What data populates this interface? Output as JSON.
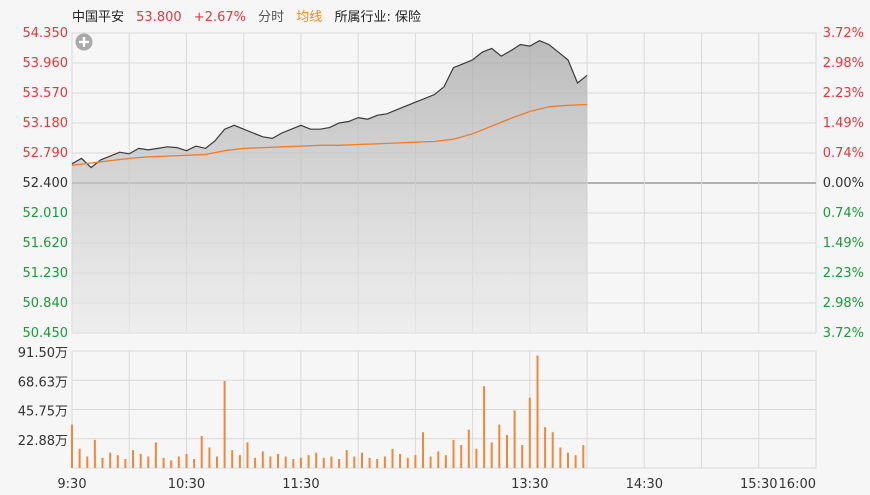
{
  "header": {
    "stock_name": "中国平安",
    "price": "53.800",
    "change_pct": "+2.67%",
    "period_label": "分时",
    "avg_label": "均线",
    "industry": "所属行业: 保险"
  },
  "icons": {
    "add": "plus-circle-icon"
  },
  "colors": {
    "price_line": "#3a3a3a",
    "avg_line": "#f07d2a",
    "up": "#e0393e",
    "down": "#1a9a3a",
    "volume": "#f0883a",
    "grid": "#d9d9d9"
  },
  "chart_data": [
    {
      "type": "line",
      "title": "",
      "prev_close": 52.4,
      "ylim": [
        50.45,
        54.35
      ],
      "y_ticks_left": [
        "54.350",
        "53.960",
        "53.570",
        "53.180",
        "52.790",
        "52.400",
        "52.010",
        "51.620",
        "51.230",
        "50.840",
        "50.450"
      ],
      "y_ticks_right": [
        "3.72%",
        "2.98%",
        "2.23%",
        "1.49%",
        "0.74%",
        "0.00%",
        "0.74%",
        "1.49%",
        "2.23%",
        "2.98%",
        "3.72%"
      ],
      "x_ticks": [
        "9:30",
        "10:30",
        "11:30",
        "13:30",
        "14:30",
        "15:30",
        "16:00"
      ],
      "grid": true,
      "series": [
        {
          "x_minutes": [
            0,
            5,
            10,
            15,
            20,
            25,
            30,
            35,
            40,
            45,
            50,
            55,
            60,
            65,
            70,
            75,
            80,
            85,
            90,
            95,
            100,
            105,
            110,
            115,
            120,
            125,
            130,
            135,
            140,
            145,
            150,
            155,
            160,
            165,
            170,
            175,
            180,
            185,
            190,
            195,
            200,
            205,
            210,
            215,
            220,
            225,
            230,
            235,
            240,
            245,
            250,
            255,
            260,
            265,
            270
          ],
          "values": [
            52.65,
            52.72,
            52.6,
            52.7,
            52.75,
            52.8,
            52.78,
            52.85,
            52.83,
            52.85,
            52.87,
            52.86,
            52.82,
            52.88,
            52.85,
            52.95,
            53.1,
            53.15,
            53.1,
            53.05,
            53.0,
            52.98,
            53.05,
            53.1,
            53.15,
            53.1,
            53.1,
            53.12,
            53.18,
            53.2,
            53.25,
            53.23,
            53.28,
            53.3,
            53.35,
            53.4,
            53.45,
            53.5,
            53.55,
            53.65,
            53.9,
            53.95,
            54.0,
            54.1,
            54.15,
            54.05,
            54.12,
            54.2,
            54.18,
            54.25,
            54.2,
            54.1,
            54.0,
            53.7,
            53.8
          ]
        },
        {
          "x_minutes": [
            0,
            10,
            20,
            30,
            40,
            50,
            60,
            70,
            80,
            90,
            100,
            110,
            120,
            130,
            140,
            150,
            160,
            170,
            180,
            190,
            200,
            210,
            220,
            230,
            240,
            250,
            260,
            270
          ],
          "values": [
            52.63,
            52.66,
            52.69,
            52.72,
            52.74,
            52.75,
            52.76,
            52.77,
            52.82,
            52.85,
            52.86,
            52.87,
            52.88,
            52.89,
            52.89,
            52.9,
            52.91,
            52.92,
            52.93,
            52.94,
            52.97,
            53.04,
            53.14,
            53.24,
            53.33,
            53.39,
            53.41,
            53.42
          ]
        }
      ]
    },
    {
      "type": "bar",
      "title": "",
      "ylim": [
        0,
        91.5
      ],
      "y_ticks": [
        "91.50万",
        "68.63万",
        "45.75万",
        "22.88万"
      ],
      "x_ticks": [
        "9:30",
        "10:30",
        "11:30",
        "13:30",
        "14:30",
        "15:30",
        "16:00"
      ],
      "grid": true,
      "series": [
        {
          "x_minutes": [
            0,
            4,
            8,
            12,
            16,
            20,
            24,
            28,
            32,
            36,
            40,
            44,
            48,
            52,
            56,
            60,
            64,
            68,
            72,
            76,
            80,
            84,
            88,
            92,
            96,
            100,
            104,
            108,
            112,
            116,
            120,
            124,
            128,
            132,
            136,
            140,
            144,
            148,
            152,
            156,
            160,
            164,
            168,
            172,
            176,
            180,
            184,
            188,
            192,
            196,
            200,
            204,
            208,
            212,
            216,
            220,
            224,
            228,
            232,
            236,
            240,
            244,
            248,
            252,
            256,
            260,
            264,
            268
          ],
          "values": [
            34,
            15,
            9,
            22,
            8,
            12,
            10,
            7,
            14,
            11,
            9,
            20,
            8,
            6,
            9,
            11,
            7,
            25,
            16,
            9,
            68,
            14,
            10,
            20,
            8,
            13,
            9,
            11,
            9,
            7,
            8,
            10,
            12,
            8,
            9,
            7,
            14,
            9,
            12,
            8,
            7,
            9,
            15,
            11,
            8,
            10,
            28,
            9,
            13,
            10,
            22,
            18,
            30,
            15,
            64,
            20,
            34,
            26,
            45,
            18,
            55,
            88,
            32,
            28,
            16,
            12,
            10,
            18
          ]
        }
      ]
    }
  ]
}
